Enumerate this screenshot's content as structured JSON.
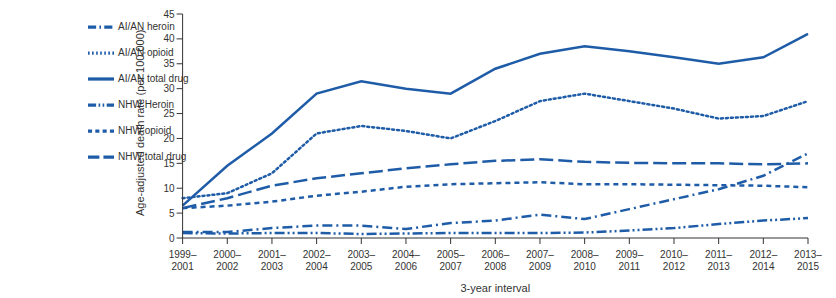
{
  "chart_data": {
    "type": "line",
    "x_label": "3-year interval",
    "y_label": "Age-adjusted death rate (per 100,000)",
    "categories": [
      "1999–2001",
      "2000–2002",
      "2001–2003",
      "2002–2004",
      "2003–2005",
      "2004–2006",
      "2005–2007",
      "2006–2008",
      "2007–2009",
      "2008–2010",
      "2009–2011",
      "2010–2012",
      "2011–2013",
      "2012–2014",
      "2013–2015"
    ],
    "ylim": [
      0,
      45
    ],
    "yticks": [
      0,
      5,
      10,
      15,
      20,
      25,
      30,
      35,
      40,
      45
    ],
    "grid": false,
    "legend": "upper left",
    "series": [
      {
        "name": "AI/AN total drug",
        "color": "#1f5ca8",
        "line_style": "solid",
        "values": [
          6.5,
          14.5,
          21,
          29,
          31.5,
          30,
          29,
          34,
          37,
          38.5,
          37.5,
          36.3,
          35,
          36.3,
          41
        ]
      },
      {
        "name": "NHW total drug",
        "color": "#1f5ca8",
        "line_style": "long_dash",
        "values": [
          6,
          8,
          10.5,
          12,
          13,
          14,
          14.8,
          15.5,
          15.8,
          15.3,
          15.1,
          15,
          15,
          14.8,
          15
        ]
      },
      {
        "name": "AI/AN opioid",
        "color": "#1f5ca8",
        "line_style": "dotted",
        "values": [
          8,
          9,
          13,
          21,
          22.5,
          21.5,
          20,
          23.5,
          27.5,
          29,
          27.5,
          26,
          24,
          24.5,
          27.5
        ]
      },
      {
        "name": "NHW opioid",
        "color": "#1f5ca8",
        "line_style": "short_dash",
        "values": [
          6,
          6.5,
          7.3,
          8.5,
          9.3,
          10.3,
          10.8,
          11,
          11.2,
          10.8,
          10.8,
          10.7,
          10.6,
          10.5,
          10.2
        ]
      },
      {
        "name": "AI/AN heroin",
        "color": "#1f5ca8",
        "line_style": "dash_dot",
        "values": [
          1.2,
          1.2,
          2,
          2.5,
          2.5,
          1.8,
          3,
          3.5,
          4.7,
          3.8,
          5.8,
          7.8,
          9.8,
          12.5,
          17
        ]
      },
      {
        "name": "NHW Heroin",
        "color": "#1f5ca8",
        "line_style": "dash_dot_dot",
        "values": [
          1,
          0.9,
          1,
          1,
          0.8,
          0.9,
          1,
          1,
          1,
          1.1,
          1.5,
          2,
          2.8,
          3.5,
          4
        ]
      }
    ]
  }
}
